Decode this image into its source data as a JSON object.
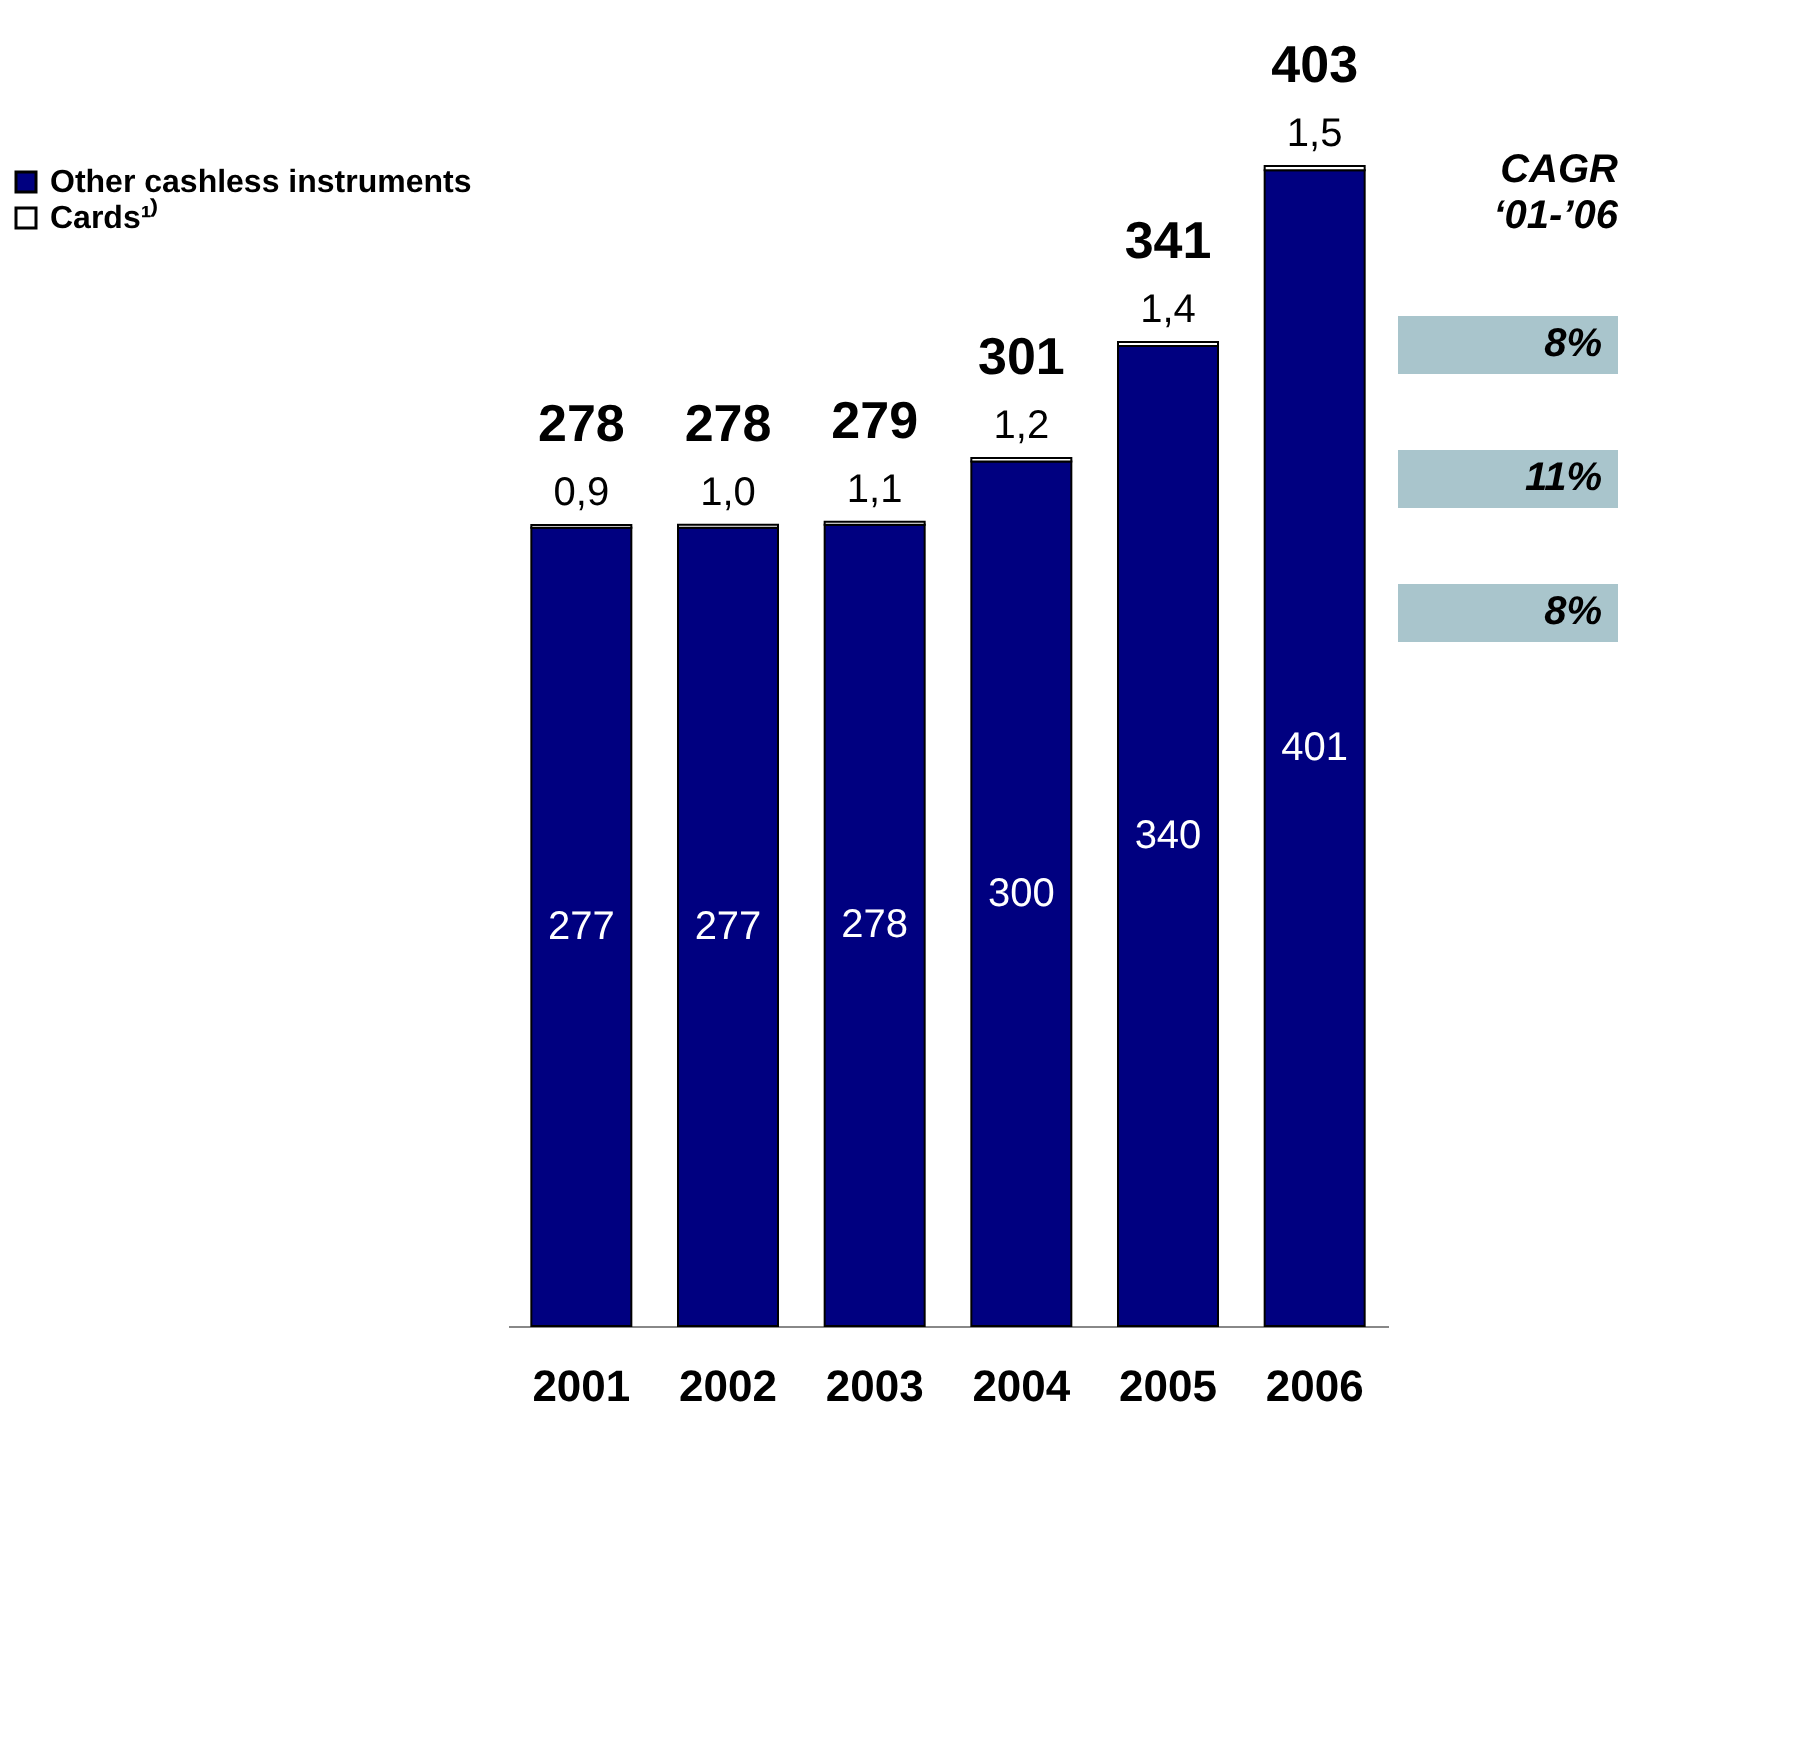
{
  "chart_data": {
    "type": "bar",
    "stacked": true,
    "legend": "left",
    "categories": [
      "2001",
      "2002",
      "2003",
      "2004",
      "2005",
      "2006"
    ],
    "series": [
      {
        "name": "Other cashless instruments",
        "color": "#000080",
        "values": [
          277,
          277,
          278,
          300,
          340,
          401
        ],
        "value_labels": [
          "277",
          "277",
          "278",
          "300",
          "340",
          "401"
        ]
      },
      {
        "name": "Cards¹⁾",
        "color": "#ffffff",
        "values": [
          0.9,
          1.0,
          1.1,
          1.2,
          1.4,
          1.5
        ],
        "value_labels": [
          "0,9",
          "1,0",
          "1,1",
          "1,2",
          "1,4",
          "1,5"
        ]
      }
    ],
    "totals": [
      "278",
      "278",
      "279",
      "301",
      "341",
      "403"
    ],
    "annotations": [
      "CAGR ‘01-’06",
      "8%",
      "11%",
      "8%"
    ]
  }
}
